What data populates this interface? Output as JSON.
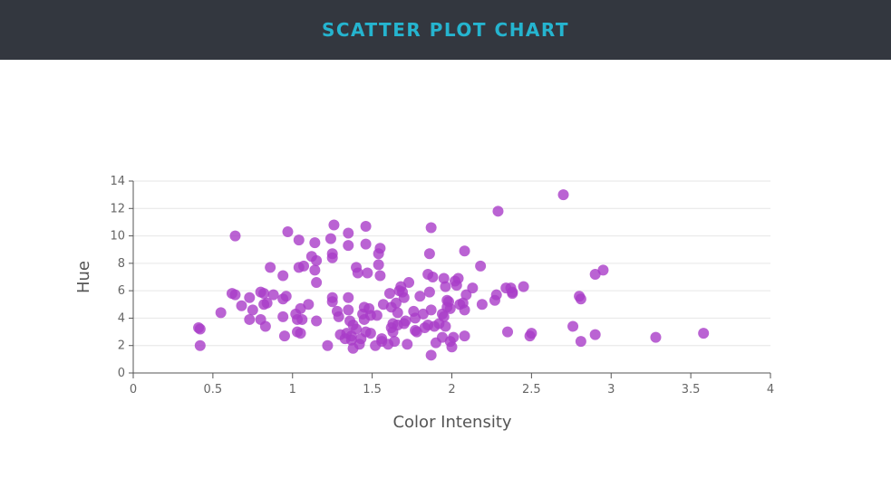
{
  "header": {
    "title": "SCATTER PLOT CHART"
  },
  "colors": {
    "header_bg": "#33373f",
    "title": "#25b4cf",
    "point": "#a93cc8",
    "grid": "#e6e6e6",
    "axis": "#555555"
  },
  "chart_data": {
    "type": "scatter",
    "title": "",
    "xlabel": "Color Intensity",
    "ylabel": "Hue",
    "xlim": [
      0,
      4
    ],
    "ylim": [
      0,
      14
    ],
    "xticks": [
      "0",
      "0.5",
      "1",
      "1.5",
      "2",
      "2.5",
      "3",
      "3.5",
      "4"
    ],
    "yticks": [
      "0",
      "2",
      "4",
      "6",
      "8",
      "10",
      "12",
      "14"
    ],
    "grid": true,
    "series": [
      {
        "points": [
          [
            0.41,
            3.3
          ],
          [
            0.42,
            3.2
          ],
          [
            0.42,
            2.0
          ],
          [
            0.55,
            4.4
          ],
          [
            0.62,
            5.8
          ],
          [
            0.64,
            5.7
          ],
          [
            0.64,
            10.0
          ],
          [
            0.68,
            4.9
          ],
          [
            0.73,
            5.5
          ],
          [
            0.73,
            3.9
          ],
          [
            0.75,
            4.6
          ],
          [
            0.8,
            5.9
          ],
          [
            0.8,
            3.9
          ],
          [
            0.82,
            5.8
          ],
          [
            0.82,
            5.0
          ],
          [
            0.83,
            3.4
          ],
          [
            0.84,
            5.1
          ],
          [
            0.86,
            7.7
          ],
          [
            0.88,
            5.7
          ],
          [
            0.94,
            7.1
          ],
          [
            0.94,
            5.4
          ],
          [
            0.94,
            4.1
          ],
          [
            0.95,
            2.7
          ],
          [
            0.96,
            5.6
          ],
          [
            0.97,
            10.3
          ],
          [
            1.02,
            4.3
          ],
          [
            1.03,
            3.9
          ],
          [
            1.03,
            3.0
          ],
          [
            1.04,
            9.7
          ],
          [
            1.04,
            7.7
          ],
          [
            1.05,
            4.7
          ],
          [
            1.05,
            2.9
          ],
          [
            1.06,
            3.9
          ],
          [
            1.07,
            7.8
          ],
          [
            1.1,
            5.0
          ],
          [
            1.12,
            8.5
          ],
          [
            1.14,
            9.5
          ],
          [
            1.14,
            7.5
          ],
          [
            1.15,
            8.2
          ],
          [
            1.15,
            6.6
          ],
          [
            1.15,
            3.8
          ],
          [
            1.22,
            2.0
          ],
          [
            1.24,
            9.8
          ],
          [
            1.25,
            8.7
          ],
          [
            1.25,
            8.4
          ],
          [
            1.25,
            5.5
          ],
          [
            1.25,
            5.2
          ],
          [
            1.26,
            10.8
          ],
          [
            1.28,
            4.5
          ],
          [
            1.29,
            4.1
          ],
          [
            1.3,
            2.8
          ],
          [
            1.33,
            2.5
          ],
          [
            1.34,
            2.9
          ],
          [
            1.35,
            10.2
          ],
          [
            1.35,
            9.3
          ],
          [
            1.35,
            5.5
          ],
          [
            1.35,
            4.6
          ],
          [
            1.36,
            3.8
          ],
          [
            1.37,
            2.7
          ],
          [
            1.37,
            2.4
          ],
          [
            1.38,
            1.8
          ],
          [
            1.38,
            3.5
          ],
          [
            1.4,
            7.7
          ],
          [
            1.4,
            3.2
          ],
          [
            1.41,
            7.3
          ],
          [
            1.42,
            2.1
          ],
          [
            1.43,
            2.5
          ],
          [
            1.44,
            4.3
          ],
          [
            1.45,
            4.8
          ],
          [
            1.45,
            3.9
          ],
          [
            1.46,
            9.4
          ],
          [
            1.46,
            3.0
          ],
          [
            1.46,
            10.7
          ],
          [
            1.47,
            7.3
          ],
          [
            1.48,
            4.7
          ],
          [
            1.49,
            4.2
          ],
          [
            1.49,
            2.9
          ],
          [
            1.52,
            2.0
          ],
          [
            1.53,
            4.2
          ],
          [
            1.54,
            8.7
          ],
          [
            1.54,
            7.9
          ],
          [
            1.55,
            9.1
          ],
          [
            1.55,
            7.1
          ],
          [
            1.56,
            2.5
          ],
          [
            1.56,
            2.3
          ],
          [
            1.57,
            5.0
          ],
          [
            1.6,
            2.1
          ],
          [
            1.61,
            5.8
          ],
          [
            1.62,
            4.8
          ],
          [
            1.62,
            3.3
          ],
          [
            1.63,
            3.6
          ],
          [
            1.63,
            3.0
          ],
          [
            1.64,
            2.3
          ],
          [
            1.65,
            5.1
          ],
          [
            1.66,
            4.4
          ],
          [
            1.66,
            3.5
          ],
          [
            1.67,
            6.0
          ],
          [
            1.68,
            6.3
          ],
          [
            1.69,
            5.9
          ],
          [
            1.7,
            3.6
          ],
          [
            1.7,
            5.5
          ],
          [
            1.71,
            3.8
          ],
          [
            1.72,
            2.1
          ],
          [
            1.73,
            6.6
          ],
          [
            1.76,
            4.5
          ],
          [
            1.77,
            4.0
          ],
          [
            1.77,
            3.1
          ],
          [
            1.78,
            3.0
          ],
          [
            1.8,
            5.6
          ],
          [
            1.82,
            4.3
          ],
          [
            1.83,
            3.3
          ],
          [
            1.85,
            7.2
          ],
          [
            1.85,
            3.5
          ],
          [
            1.86,
            8.7
          ],
          [
            1.86,
            5.9
          ],
          [
            1.87,
            10.6
          ],
          [
            1.87,
            4.6
          ],
          [
            1.87,
            1.3
          ],
          [
            1.88,
            7.0
          ],
          [
            1.89,
            3.4
          ],
          [
            1.9,
            2.2
          ],
          [
            1.92,
            3.6
          ],
          [
            1.94,
            4.3
          ],
          [
            1.94,
            2.6
          ],
          [
            1.95,
            6.9
          ],
          [
            1.95,
            4.1
          ],
          [
            1.96,
            6.3
          ],
          [
            1.96,
            3.4
          ],
          [
            1.97,
            5.3
          ],
          [
            1.97,
            4.8
          ],
          [
            1.98,
            5.2
          ],
          [
            1.99,
            4.7
          ],
          [
            1.99,
            2.3
          ],
          [
            2.0,
            1.9
          ],
          [
            2.01,
            2.6
          ],
          [
            2.02,
            6.7
          ],
          [
            2.03,
            6.4
          ],
          [
            2.04,
            6.9
          ],
          [
            2.05,
            5.0
          ],
          [
            2.07,
            5.1
          ],
          [
            2.08,
            8.9
          ],
          [
            2.08,
            4.6
          ],
          [
            2.08,
            2.7
          ],
          [
            2.09,
            5.7
          ],
          [
            2.13,
            6.2
          ],
          [
            2.18,
            7.8
          ],
          [
            2.19,
            5.0
          ],
          [
            2.27,
            5.3
          ],
          [
            2.28,
            5.7
          ],
          [
            2.29,
            11.8
          ],
          [
            2.34,
            6.2
          ],
          [
            2.35,
            3.0
          ],
          [
            2.37,
            6.2
          ],
          [
            2.38,
            5.9
          ],
          [
            2.38,
            5.8
          ],
          [
            2.45,
            6.3
          ],
          [
            2.49,
            2.7
          ],
          [
            2.5,
            2.9
          ],
          [
            2.7,
            13.0
          ],
          [
            2.76,
            3.4
          ],
          [
            2.8,
            5.6
          ],
          [
            2.81,
            5.4
          ],
          [
            2.81,
            2.3
          ],
          [
            2.9,
            2.8
          ],
          [
            2.9,
            7.2
          ],
          [
            2.95,
            7.5
          ],
          [
            3.28,
            2.6
          ],
          [
            3.58,
            2.9
          ]
        ]
      }
    ]
  }
}
